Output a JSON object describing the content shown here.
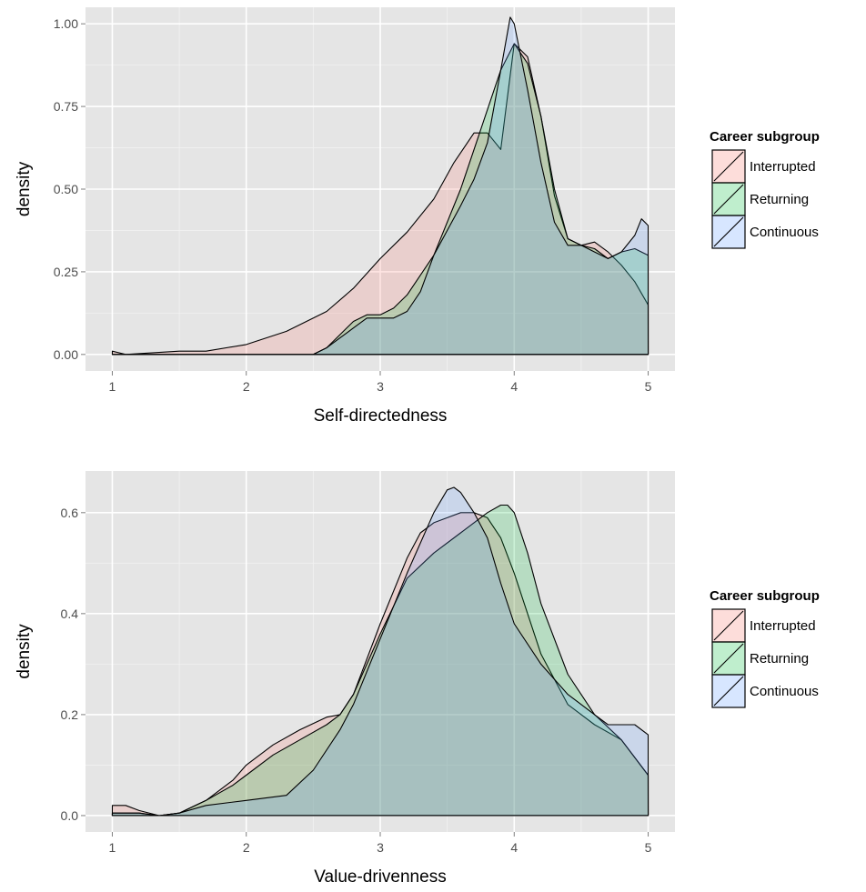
{
  "chart_data": [
    {
      "type": "area",
      "subtype": "density",
      "xlabel": "Self-directedness",
      "ylabel": "density",
      "xlim": [
        1,
        5
      ],
      "ylim": [
        0,
        1.0
      ],
      "x_ticks": [
        "1",
        "2",
        "3",
        "4",
        "5"
      ],
      "y_ticks": [
        "0.00",
        "0.25",
        "0.50",
        "0.75",
        "1.00"
      ],
      "grid": true,
      "legend": {
        "title": "Career subgroup",
        "position": "right"
      },
      "series": [
        {
          "name": "Interrupted",
          "x": [
            1.0,
            1.1,
            1.5,
            1.7,
            2.0,
            2.3,
            2.6,
            2.8,
            3.0,
            3.2,
            3.4,
            3.55,
            3.7,
            3.8,
            3.9,
            4.0,
            4.1,
            4.2,
            4.3,
            4.4,
            4.5,
            4.6,
            4.7,
            4.8,
            4.9,
            5.0
          ],
          "y": [
            0.01,
            0.0,
            0.01,
            0.01,
            0.03,
            0.07,
            0.13,
            0.2,
            0.29,
            0.37,
            0.47,
            0.58,
            0.67,
            0.67,
            0.62,
            0.94,
            0.9,
            0.72,
            0.48,
            0.35,
            0.33,
            0.34,
            0.31,
            0.27,
            0.22,
            0.15
          ]
        },
        {
          "name": "Returning",
          "x": [
            1.0,
            2.0,
            2.5,
            2.6,
            2.7,
            2.8,
            2.9,
            3.0,
            3.1,
            3.2,
            3.4,
            3.6,
            3.7,
            3.8,
            3.9,
            4.0,
            4.1,
            4.2,
            4.3,
            4.4,
            4.5,
            4.6,
            4.7,
            4.8,
            4.9,
            5.0
          ],
          "y": [
            0.0,
            0.0,
            0.0,
            0.02,
            0.06,
            0.1,
            0.12,
            0.12,
            0.14,
            0.18,
            0.3,
            0.5,
            0.62,
            0.74,
            0.86,
            0.94,
            0.88,
            0.72,
            0.5,
            0.35,
            0.33,
            0.32,
            0.29,
            0.31,
            0.32,
            0.3
          ]
        },
        {
          "name": "Continuous",
          "x": [
            1.0,
            2.0,
            2.5,
            2.6,
            2.7,
            2.8,
            2.9,
            3.0,
            3.1,
            3.2,
            3.3,
            3.4,
            3.6,
            3.7,
            3.8,
            3.9,
            3.97,
            4.0,
            4.1,
            4.2,
            4.3,
            4.4,
            4.5,
            4.6,
            4.7,
            4.8,
            4.9,
            4.95,
            5.0
          ],
          "y": [
            0.0,
            0.0,
            0.0,
            0.02,
            0.05,
            0.08,
            0.11,
            0.11,
            0.11,
            0.13,
            0.19,
            0.3,
            0.45,
            0.53,
            0.64,
            0.86,
            1.02,
            1.0,
            0.8,
            0.58,
            0.4,
            0.33,
            0.33,
            0.31,
            0.29,
            0.31,
            0.36,
            0.41,
            0.39
          ]
        }
      ]
    },
    {
      "type": "area",
      "subtype": "density",
      "xlabel": "Value-drivenness",
      "ylabel": "density",
      "xlim": [
        1,
        5
      ],
      "ylim": [
        0,
        0.65
      ],
      "x_ticks": [
        "1",
        "2",
        "3",
        "4",
        "5"
      ],
      "y_ticks": [
        "0.0",
        "0.2",
        "0.4",
        "0.6"
      ],
      "grid": true,
      "legend": {
        "title": "Career subgroup",
        "position": "right"
      },
      "series": [
        {
          "name": "Interrupted",
          "x": [
            1.0,
            1.1,
            1.2,
            1.35,
            1.5,
            1.7,
            1.9,
            2.0,
            2.2,
            2.4,
            2.6,
            2.7,
            2.8,
            3.0,
            3.2,
            3.3,
            3.4,
            3.5,
            3.6,
            3.7,
            3.8,
            3.9,
            4.0,
            4.1,
            4.2,
            4.4,
            4.6,
            4.8,
            5.0
          ],
          "y": [
            0.02,
            0.02,
            0.01,
            0.0,
            0.005,
            0.03,
            0.07,
            0.1,
            0.14,
            0.17,
            0.195,
            0.2,
            0.24,
            0.38,
            0.51,
            0.56,
            0.58,
            0.59,
            0.6,
            0.6,
            0.59,
            0.55,
            0.48,
            0.4,
            0.32,
            0.22,
            0.18,
            0.15,
            0.08
          ]
        },
        {
          "name": "Returning",
          "x": [
            1.0,
            1.2,
            1.35,
            1.5,
            1.7,
            1.9,
            2.0,
            2.2,
            2.4,
            2.6,
            2.7,
            2.8,
            3.0,
            3.2,
            3.4,
            3.6,
            3.8,
            3.9,
            3.95,
            4.0,
            4.1,
            4.2,
            4.4,
            4.6,
            4.8,
            5.0
          ],
          "y": [
            0.005,
            0.005,
            0.0,
            0.005,
            0.03,
            0.06,
            0.08,
            0.12,
            0.15,
            0.18,
            0.2,
            0.24,
            0.36,
            0.47,
            0.52,
            0.56,
            0.6,
            0.615,
            0.615,
            0.6,
            0.52,
            0.42,
            0.28,
            0.2,
            0.15,
            0.08
          ]
        },
        {
          "name": "Continuous",
          "x": [
            1.0,
            1.2,
            1.35,
            1.5,
            1.7,
            2.0,
            2.3,
            2.5,
            2.7,
            2.8,
            3.0,
            3.2,
            3.4,
            3.5,
            3.55,
            3.6,
            3.7,
            3.8,
            3.9,
            4.0,
            4.2,
            4.4,
            4.6,
            4.7,
            4.9,
            5.0
          ],
          "y": [
            0.005,
            0.005,
            0.0,
            0.005,
            0.02,
            0.03,
            0.04,
            0.09,
            0.17,
            0.22,
            0.35,
            0.48,
            0.6,
            0.645,
            0.65,
            0.64,
            0.6,
            0.55,
            0.46,
            0.38,
            0.3,
            0.24,
            0.2,
            0.18,
            0.18,
            0.16
          ]
        }
      ]
    }
  ],
  "colors": {
    "Interrupted": "#F8766D",
    "Returning": "#00BA38",
    "Continuous": "#619CFF",
    "panel": "#E5E5E5",
    "grid": "#FFFFFF"
  }
}
